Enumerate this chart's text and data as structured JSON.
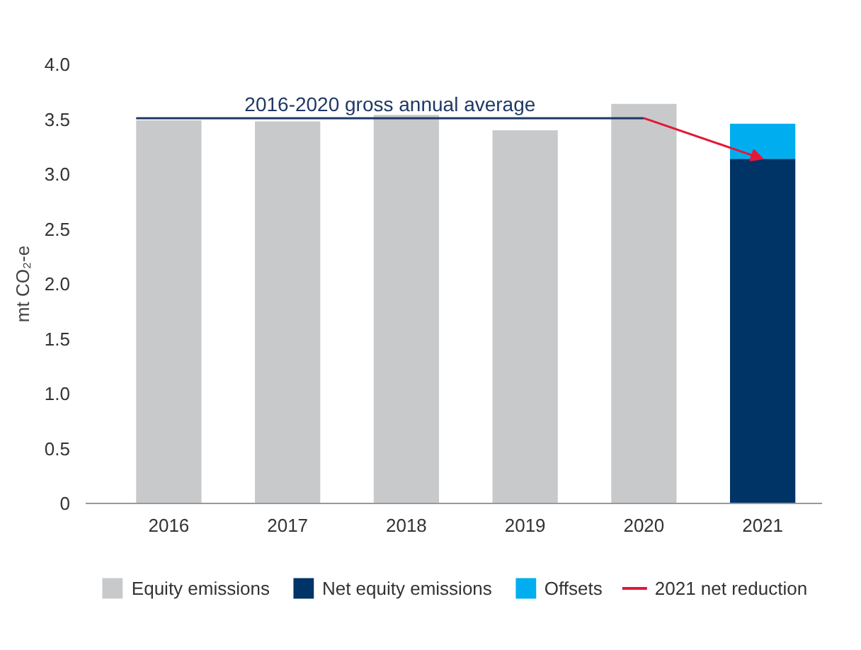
{
  "chart_data": {
    "type": "bar",
    "stacked": true,
    "categories": [
      "2016",
      "2017",
      "2018",
      "2019",
      "2020",
      "2021"
    ],
    "ylabel": "mt CO₂-e",
    "ylim": [
      0,
      4.0
    ],
    "yticks": [
      {
        "value": 0,
        "label": "0"
      },
      {
        "value": 0.5,
        "label": "0.5"
      },
      {
        "value": 1,
        "label": "1.0"
      },
      {
        "value": 1.5,
        "label": "1.5"
      },
      {
        "value": 2,
        "label": "2.0"
      },
      {
        "value": 2.5,
        "label": "2.5"
      },
      {
        "value": 3,
        "label": "3.0"
      },
      {
        "value": 3.5,
        "label": "3.5"
      },
      {
        "value": 4,
        "label": "4.0"
      }
    ],
    "series": [
      {
        "name": "Equity emissions",
        "color": "#c8c9cb",
        "values": [
          3.49,
          3.48,
          3.54,
          3.4,
          3.64,
          null
        ]
      },
      {
        "name": "Net equity emissions",
        "color": "#003366",
        "values": [
          null,
          null,
          null,
          null,
          null,
          3.14
        ]
      },
      {
        "name": "Offsets",
        "color": "#00aeef",
        "values": [
          null,
          null,
          null,
          null,
          null,
          0.32
        ]
      }
    ],
    "ref_lines": [
      {
        "axis": "y",
        "value": 3.51,
        "label": "2016-2020 gross annual average",
        "color": "#1f3864"
      }
    ],
    "annotations": [
      "2021 net reduction"
    ],
    "grid": false,
    "legend": "bottom"
  }
}
